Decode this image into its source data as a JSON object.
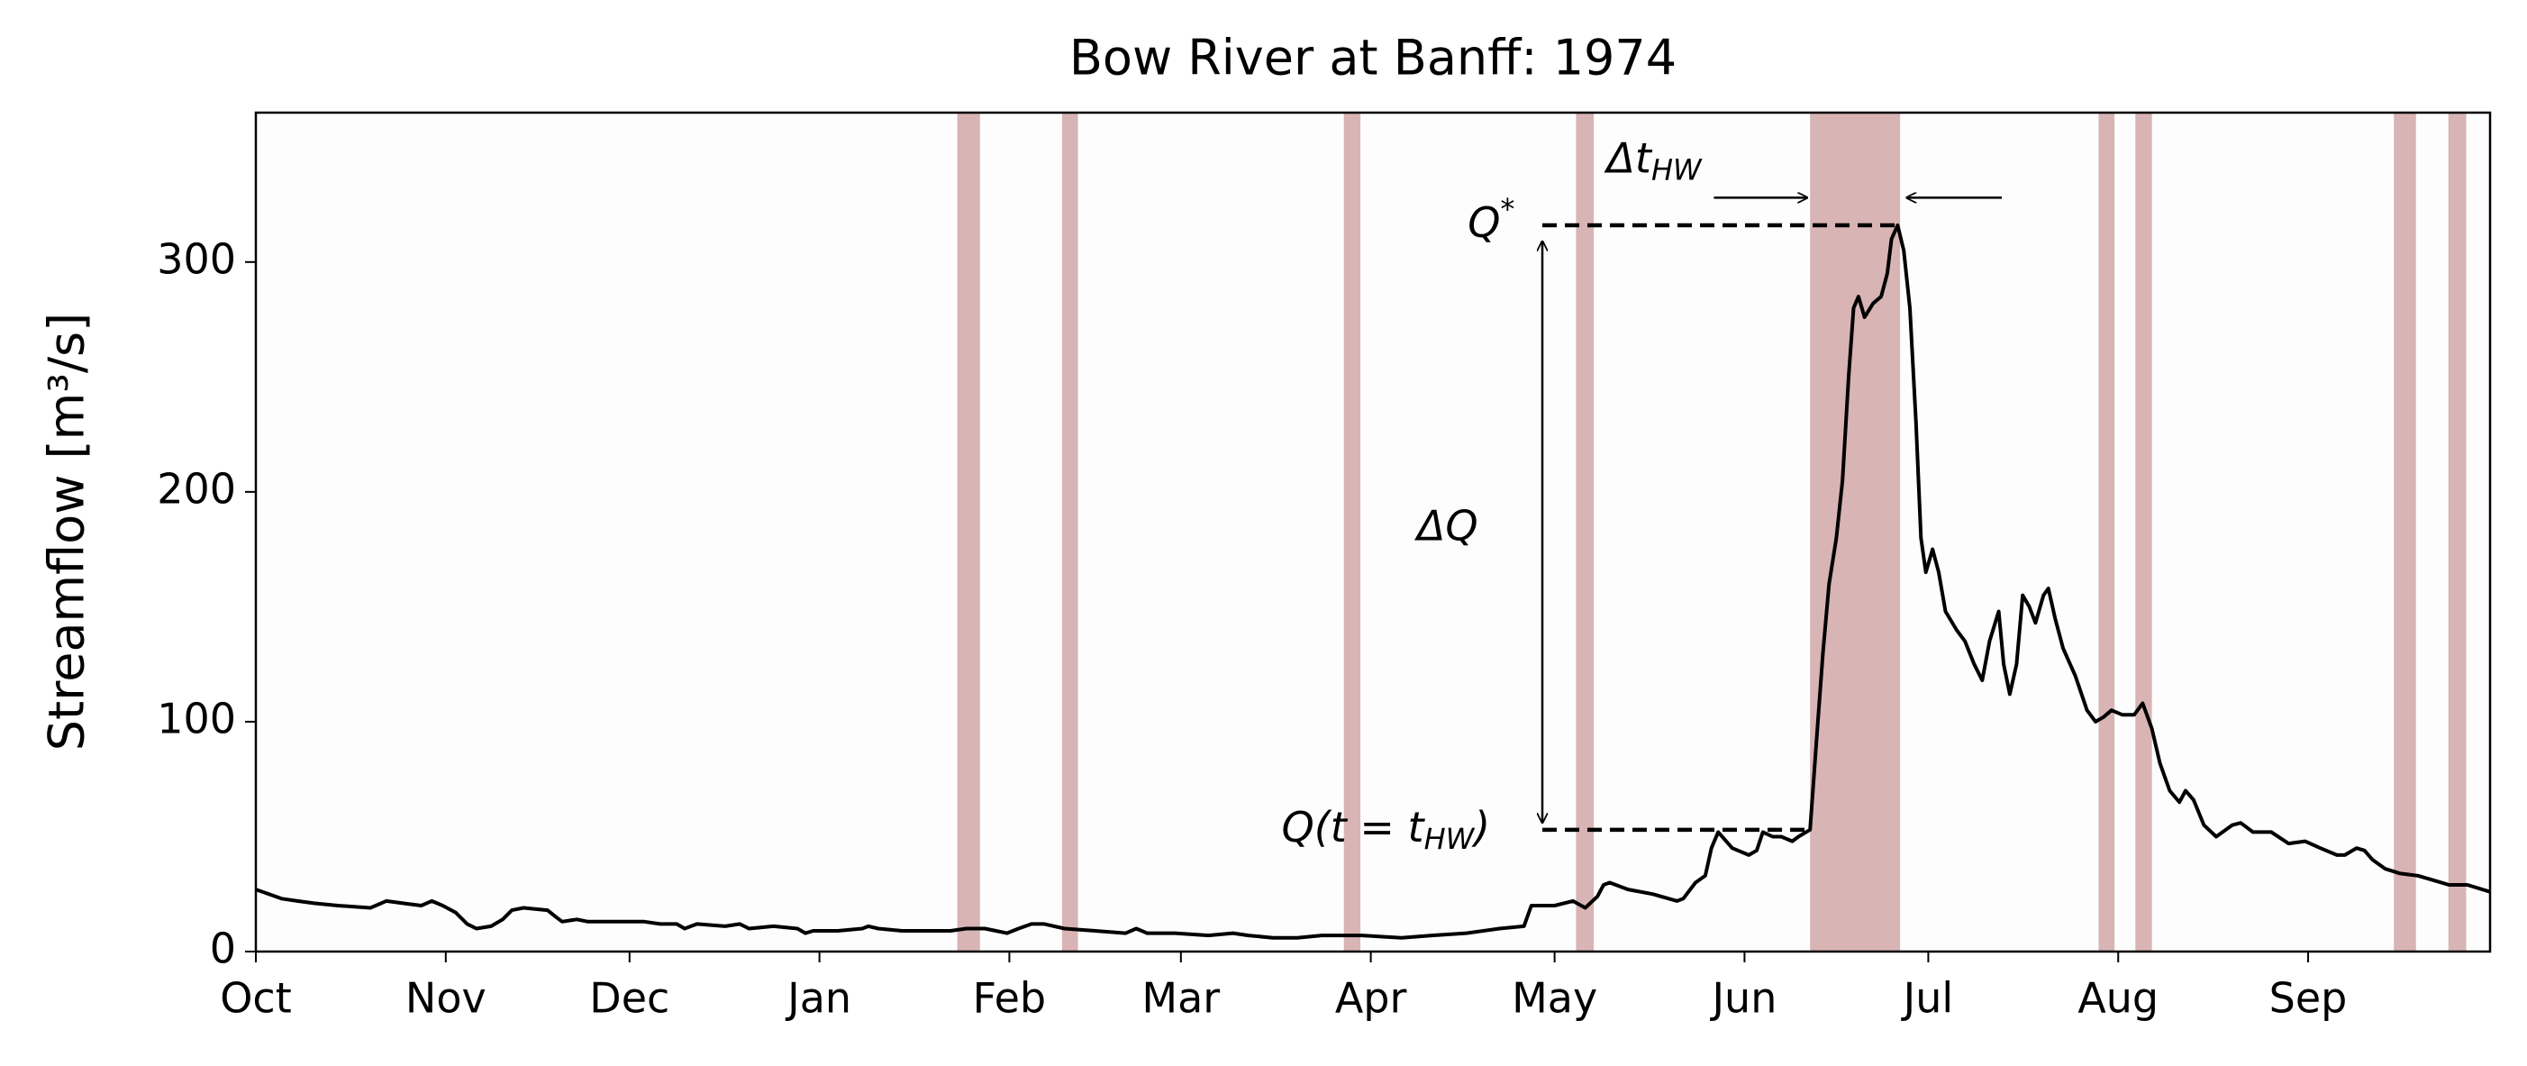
{
  "chart_data": {
    "type": "line",
    "title": "Bow River at Banff: 1974",
    "y_label": "Streamflow [m³/s]",
    "color": "#000000",
    "span_color": "#d8b4b4",
    "x": [
      0,
      4.2,
      6.8,
      9.5,
      13.4,
      18.7,
      21.3,
      24,
      27,
      28.7,
      30.5,
      32.6,
      34.5,
      36,
      38.4,
      40.3,
      41.8,
      43.7,
      47.6,
      49,
      50,
      52.4,
      54.2,
      58,
      63.4,
      66,
      68.7,
      70,
      72,
      76.6,
      79,
      80.5,
      84.5,
      88.4,
      89.7,
      91,
      95,
      99,
      100,
      101.6,
      105.5,
      109.5,
      113.4,
      116,
      119,
      120.8,
      122.6,
      124.5,
      126.6,
      128.7,
      132,
      137,
      142,
      143.7,
      145.5,
      150,
      155.5,
      159.5,
      162,
      166,
      170,
      174,
      176.6,
      180.5,
      187,
      192,
      197.6,
      203,
      207,
      208.2,
      212,
      215,
      217,
      219,
      220,
      221,
      224,
      228,
      232,
      233,
      235,
      236.6,
      237.6,
      238.7,
      241,
      243.7,
      245,
      246,
      247.6,
      249,
      250.8,
      251.8,
      253.7,
      254.7,
      255.8,
      256.8,
      258,
      259,
      260,
      260.8,
      261.6,
      262.6,
      264,
      265.3,
      266.3,
      267,
      268,
      269,
      270,
      271,
      271.8,
      272.6,
      273.7,
      274.7,
      275.8,
      277.6,
      279,
      280.5,
      281.8,
      283,
      284.5,
      285.3,
      286.3,
      287.4,
      288.4,
      289.5,
      290.5,
      291.8,
      292.6,
      293.7,
      295,
      297,
      298.9,
      300.3,
      301.6,
      302.9,
      304.7,
      306.6,
      308,
      309.5,
      310.8,
      312.4,
      314,
      315,
      316.3,
      318,
      320,
      322.6,
      324,
      326,
      329,
      331.8,
      334.5,
      337,
      339.7,
      341,
      342.9,
      344.2,
      345.5,
      347.6,
      350,
      352.9,
      355.5,
      358,
      361,
      364.7
    ],
    "values": [
      27,
      23,
      22,
      21,
      20,
      19,
      22,
      21,
      20,
      22,
      20,
      17,
      12,
      10,
      11,
      14,
      18,
      19,
      18,
      15,
      13,
      14,
      13,
      13,
      13,
      12,
      12,
      10,
      12,
      11,
      12,
      10,
      11,
      10,
      8,
      9,
      9,
      10,
      11,
      10,
      9,
      9,
      9,
      10,
      10,
      9,
      8,
      10,
      12,
      12,
      10,
      9,
      8,
      10,
      8,
      8,
      7,
      8,
      7,
      6,
      6,
      7,
      7,
      7,
      6,
      7,
      8,
      10,
      11,
      20,
      20,
      22,
      19,
      24,
      29,
      30,
      27,
      25,
      22,
      23,
      30,
      33,
      45,
      52,
      45,
      42,
      44,
      52,
      50,
      50,
      48,
      50,
      53,
      90,
      130,
      160,
      180,
      205,
      250,
      280,
      285,
      276,
      282,
      285,
      295,
      310,
      316,
      305,
      280,
      230,
      180,
      165,
      175,
      165,
      148,
      140,
      135,
      125,
      118,
      135,
      148,
      125,
      112,
      125,
      155,
      150,
      143,
      155,
      158,
      145,
      132,
      120,
      105,
      100,
      102,
      105,
      103,
      103,
      108,
      97,
      82,
      70,
      65,
      70,
      66,
      55,
      50,
      55,
      56,
      52,
      52,
      47,
      48,
      45,
      42,
      42,
      45,
      44,
      40,
      36,
      34,
      33,
      31,
      29,
      29,
      26
    ],
    "spans": [
      [
        114.5,
        118.2
      ],
      [
        131.6,
        134.2
      ],
      [
        177.6,
        180.3
      ],
      [
        215.5,
        218.4
      ],
      [
        253.7,
        268.4
      ],
      [
        300.8,
        303.4
      ],
      [
        306.8,
        309.5
      ],
      [
        349,
        352.6
      ],
      [
        357.9,
        360.8
      ]
    ],
    "xlim": [
      0,
      364.7
    ],
    "xticks": [
      {
        "value": 0,
        "label": "Oct"
      },
      {
        "value": 31,
        "label": "Nov"
      },
      {
        "value": 61,
        "label": "Dec"
      },
      {
        "value": 92,
        "label": "Jan"
      },
      {
        "value": 123,
        "label": "Feb"
      },
      {
        "value": 151,
        "label": "Mar"
      },
      {
        "value": 182,
        "label": "Apr"
      },
      {
        "value": 212,
        "label": "May"
      },
      {
        "value": 243,
        "label": "Jun"
      },
      {
        "value": 273,
        "label": "Jul"
      },
      {
        "value": 304,
        "label": "Aug"
      },
      {
        "value": 335,
        "label": "Sep"
      }
    ],
    "ylim": [
      0,
      365
    ],
    "yticks": [
      0,
      100,
      200,
      300
    ],
    "annotations": {
      "q_star": {
        "base": "Q",
        "sup": "*"
      },
      "delta_q": "ΔQ",
      "q_hw": {
        "base": "Q(t = t",
        "sub": "HW",
        "end": ")"
      },
      "delta_t": {
        "base": "Δt",
        "sub": "HW"
      }
    }
  }
}
